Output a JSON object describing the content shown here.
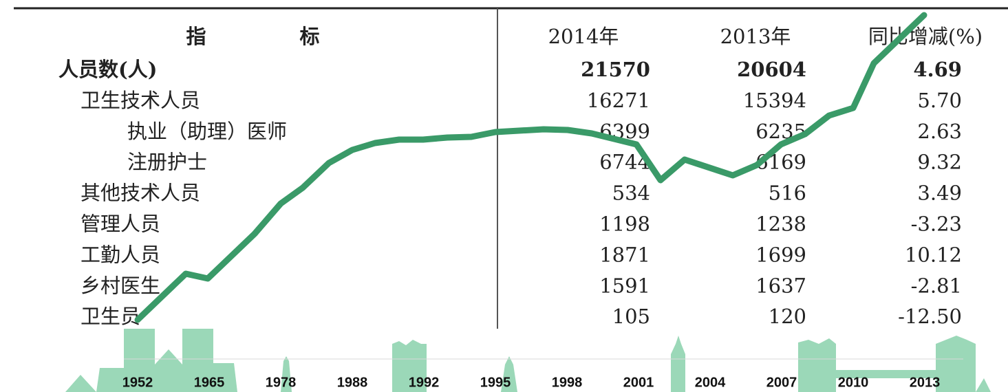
{
  "table": {
    "header": {
      "label_1": "指",
      "label_2": "标",
      "columns": [
        "2014年",
        "2013年",
        "同比增减(%)"
      ]
    },
    "rows": [
      [
        "人员数(人)",
        "21570",
        "20604",
        "4.69"
      ],
      [
        "卫生技术人员",
        "16271",
        "15394",
        "5.70"
      ],
      [
        "执业（助理）医师",
        "6399",
        "6235",
        "2.63"
      ],
      [
        "注册护士",
        "6744",
        "6169",
        "9.32"
      ],
      [
        "其他技术人员",
        "534",
        "516",
        "3.49"
      ],
      [
        "管理人员",
        "1198",
        "1238",
        "-3.23"
      ],
      [
        "工勤人员",
        "1871",
        "1699",
        "10.12"
      ],
      [
        "乡村医生",
        "1591",
        "1637",
        "-2.81"
      ],
      [
        "卫生员",
        "105",
        "120",
        "-12.50"
      ]
    ]
  },
  "timeline": {
    "years": [
      "1952",
      "1965",
      "1978",
      "1988",
      "1992",
      "1995",
      "1998",
      "2001",
      "2004",
      "2007",
      "2010",
      "2013"
    ]
  }
}
